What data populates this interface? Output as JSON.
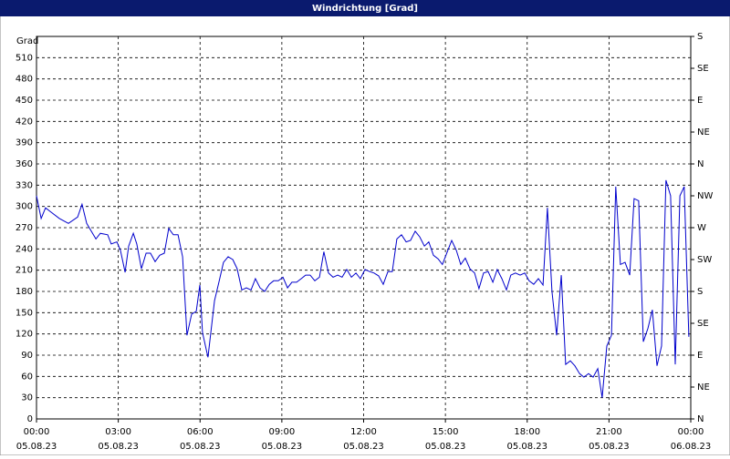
{
  "chart_data": {
    "type": "line",
    "title": "Windrichtung [Grad]",
    "y_label": "Grad",
    "color": "#0000cc",
    "x": [
      0,
      0.17,
      0.33,
      0.5,
      0.84,
      1.17,
      1.51,
      1.67,
      1.84,
      2.18,
      2.34,
      2.61,
      2.74,
      2.95,
      3.08,
      3.25,
      3.38,
      3.55,
      3.68,
      3.85,
      4.02,
      4.18,
      4.35,
      4.52,
      4.69,
      4.85,
      5.02,
      5.19,
      5.36,
      5.52,
      5.69,
      5.86,
      5.99,
      6.09,
      6.29,
      6.53,
      6.69,
      6.86,
      7.03,
      7.2,
      7.36,
      7.53,
      7.7,
      7.87,
      8.03,
      8.2,
      8.37,
      8.54,
      8.7,
      8.87,
      9.04,
      9.21,
      9.37,
      9.54,
      9.71,
      9.87,
      10.04,
      10.21,
      10.38,
      10.54,
      10.71,
      10.88,
      11.05,
      11.21,
      11.38,
      11.55,
      11.72,
      11.88,
      12.05,
      12.22,
      12.38,
      12.55,
      12.72,
      12.89,
      13.05,
      13.22,
      13.39,
      13.56,
      13.72,
      13.89,
      14.06,
      14.23,
      14.39,
      14.56,
      14.73,
      14.89,
      15.06,
      15.23,
      15.4,
      15.56,
      15.73,
      15.9,
      16.07,
      16.23,
      16.4,
      16.57,
      16.74,
      16.9,
      17.07,
      17.24,
      17.4,
      17.57,
      17.74,
      17.91,
      18.07,
      18.24,
      18.41,
      18.58,
      18.74,
      18.91,
      19.08,
      19.25,
      19.41,
      19.58,
      19.75,
      19.92,
      20.08,
      20.25,
      20.42,
      20.59,
      20.75,
      20.92,
      21.09,
      21.25,
      21.42,
      21.59,
      21.76,
      21.92,
      22.09,
      22.26,
      22.43,
      22.59,
      22.76,
      22.93,
      23.09,
      23.26,
      23.43,
      23.6,
      23.76,
      23.93
    ],
    "values": [
      315,
      283,
      298,
      293,
      283,
      276,
      285,
      303,
      276,
      254,
      262,
      260,
      247,
      250,
      238,
      207,
      244,
      262,
      247,
      212,
      234,
      234,
      222,
      231,
      234,
      269,
      260,
      260,
      229,
      118,
      148,
      152,
      189,
      122,
      87,
      167,
      193,
      221,
      229,
      225,
      212,
      182,
      185,
      182,
      198,
      185,
      180,
      190,
      195,
      195,
      200,
      185,
      193,
      193,
      198,
      203,
      203,
      195,
      200,
      236,
      206,
      200,
      203,
      200,
      211,
      200,
      206,
      198,
      211,
      208,
      206,
      202,
      190,
      208,
      208,
      254,
      260,
      250,
      252,
      265,
      257,
      244,
      250,
      231,
      226,
      218,
      235,
      252,
      238,
      218,
      227,
      212,
      206,
      184,
      206,
      208,
      193,
      211,
      198,
      182,
      203,
      206,
      203,
      206,
      195,
      190,
      198,
      189,
      298,
      180,
      118,
      203,
      77,
      82,
      75,
      64,
      59,
      64,
      59,
      71,
      30,
      103,
      118,
      328,
      218,
      221,
      203,
      311,
      308,
      109,
      128,
      154,
      75,
      103,
      337,
      315,
      77,
      315,
      328,
      116
    ],
    "xlim": [
      0,
      24
    ],
    "xticks": [
      {
        "value": 0,
        "label": "00:00"
      },
      {
        "value": 3,
        "label": "03:00"
      },
      {
        "value": 6,
        "label": "06:00"
      },
      {
        "value": 9,
        "label": "09:00"
      },
      {
        "value": 12,
        "label": "12:00"
      },
      {
        "value": 15,
        "label": "15:00"
      },
      {
        "value": 18,
        "label": "18:00"
      },
      {
        "value": 21,
        "label": "21:00"
      },
      {
        "value": 24,
        "label": "00:00"
      }
    ],
    "xtick_dates": [
      "05.08.23",
      "05.08.23",
      "05.08.23",
      "05.08.23",
      "05.08.23",
      "05.08.23",
      "05.08.23",
      "05.08.23",
      "06.08.23"
    ],
    "ylim": [
      0,
      540
    ],
    "yticks": [
      0,
      30,
      60,
      90,
      120,
      150,
      180,
      210,
      240,
      270,
      300,
      330,
      360,
      390,
      420,
      450,
      480,
      510
    ],
    "y2lim": [
      0,
      540
    ],
    "y2ticks": [
      {
        "value": 0,
        "label": "N"
      },
      {
        "value": 45,
        "label": "NE"
      },
      {
        "value": 90,
        "label": "E"
      },
      {
        "value": 135,
        "label": "SE"
      },
      {
        "value": 180,
        "label": "S"
      },
      {
        "value": 225,
        "label": "SW"
      },
      {
        "value": 270,
        "label": "W"
      },
      {
        "value": 315,
        "label": "NW"
      },
      {
        "value": 360,
        "label": "N"
      },
      {
        "value": 405,
        "label": "NE"
      },
      {
        "value": 450,
        "label": "E"
      },
      {
        "value": 495,
        "label": "SE"
      },
      {
        "value": 540,
        "label": "S"
      }
    ],
    "grid": true
  }
}
